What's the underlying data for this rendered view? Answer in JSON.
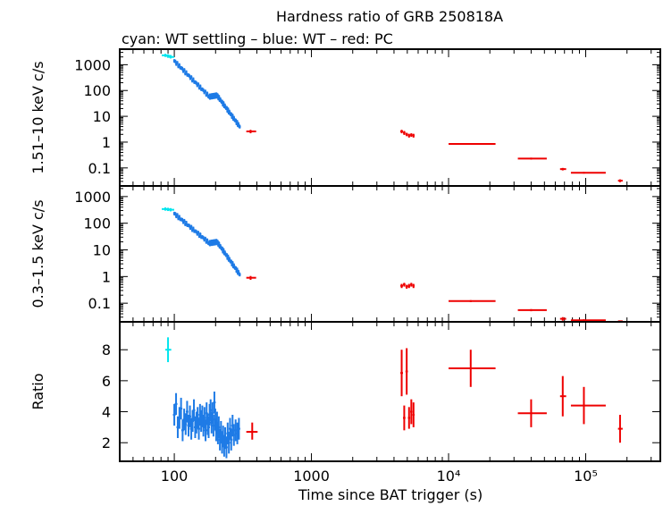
{
  "chart_data": {
    "type": "scatter",
    "title": "Hardness ratio of GRB 250818A",
    "subtitle": "cyan: WT settling – blue: WT – red: PC",
    "xlabel": "Time since BAT trigger (s)",
    "xscale": "log",
    "xlim": [
      40,
      350000
    ],
    "x_ticks": [
      {
        "value": 100,
        "label": "100"
      },
      {
        "value": 1000,
        "label": "1000"
      },
      {
        "value": 10000,
        "label": "10⁴"
      },
      {
        "value": 100000,
        "label": "10⁵"
      }
    ],
    "colors": {
      "settling": "#00e5ee",
      "wt": "#1e7be6",
      "pc": "#ee0000"
    },
    "panels": [
      {
        "id": "hard",
        "ylabel": "1.51–10 keV c/s",
        "yscale": "log",
        "ylim": [
          0.02,
          4000
        ],
        "y_ticks": [
          {
            "value": 1000,
            "label": "1000"
          },
          {
            "value": 100,
            "label": "100"
          },
          {
            "value": 10,
            "label": "10"
          },
          {
            "value": 1,
            "label": "1"
          },
          {
            "value": 0.1,
            "label": "0.1"
          }
        ],
        "settling": [
          [
            86,
            2300
          ],
          [
            90,
            2200
          ],
          [
            94,
            2000
          ]
        ],
        "wt_powerlaw": [
          {
            "t0": 100,
            "t1": 180,
            "v0": 1400,
            "v1": 58
          },
          {
            "t0": 180,
            "t1": 205,
            "v0": 58,
            "v1": 65
          },
          {
            "t0": 205,
            "t1": 300,
            "v0": 65,
            "v1": 4
          }
        ],
        "pc": [
          {
            "t": 360,
            "v": 2.6,
            "tlo": 335,
            "thi": 395,
            "vlo": 2.2,
            "vhi": 3.0
          },
          {
            "t": 4550,
            "v": 2.6,
            "tlo": 4450,
            "thi": 4650,
            "vlo": 2.2,
            "vhi": 3.0
          },
          {
            "t": 4750,
            "v": 2.3,
            "tlo": 4650,
            "thi": 4850,
            "vlo": 1.9,
            "vhi": 2.7
          },
          {
            "t": 4950,
            "v": 2.0,
            "tlo": 4850,
            "thi": 5050,
            "vlo": 1.7,
            "vhi": 2.3
          },
          {
            "t": 5150,
            "v": 1.8,
            "tlo": 5050,
            "thi": 5250,
            "vlo": 1.5,
            "vhi": 2.1
          },
          {
            "t": 5350,
            "v": 1.9,
            "tlo": 5250,
            "thi": 5450,
            "vlo": 1.6,
            "vhi": 2.2
          },
          {
            "t": 5550,
            "v": 1.8,
            "tlo": 5450,
            "thi": 5650,
            "vlo": 1.5,
            "vhi": 2.1
          },
          {
            "t": 14500,
            "v": 0.85,
            "tlo": 10000,
            "thi": 22000,
            "vlo": 0.8,
            "vhi": 0.9
          },
          {
            "t": 40000,
            "v": 0.23,
            "tlo": 32000,
            "thi": 52000,
            "vlo": 0.21,
            "vhi": 0.25
          },
          {
            "t": 68000,
            "v": 0.09,
            "tlo": 65000,
            "thi": 72000,
            "vlo": 0.08,
            "vhi": 0.1
          },
          {
            "t": 97000,
            "v": 0.065,
            "tlo": 78000,
            "thi": 140000,
            "vlo": 0.06,
            "vhi": 0.07
          },
          {
            "t": 178000,
            "v": 0.032,
            "tlo": 172000,
            "thi": 186000,
            "vlo": 0.028,
            "vhi": 0.036
          }
        ]
      },
      {
        "id": "soft",
        "ylabel": "0.3–1.5 keV c/s",
        "yscale": "log",
        "ylim": [
          0.02,
          2500
        ],
        "y_ticks": [
          {
            "value": 1000,
            "label": "1000"
          },
          {
            "value": 100,
            "label": "100"
          },
          {
            "value": 10,
            "label": "10"
          },
          {
            "value": 1,
            "label": "1"
          },
          {
            "value": 0.1,
            "label": "0.1"
          }
        ],
        "settling": [
          [
            86,
            340
          ],
          [
            90,
            330
          ],
          [
            94,
            320
          ]
        ],
        "wt_powerlaw": [
          {
            "t0": 100,
            "t1": 180,
            "v0": 230,
            "v1": 18
          },
          {
            "t0": 180,
            "t1": 205,
            "v0": 18,
            "v1": 20
          },
          {
            "t0": 205,
            "t1": 300,
            "v0": 20,
            "v1": 1.2
          }
        ],
        "pc": [
          {
            "t": 360,
            "v": 0.9,
            "tlo": 335,
            "thi": 395,
            "vlo": 0.75,
            "vhi": 1.05
          },
          {
            "t": 4550,
            "v": 0.45,
            "tlo": 4450,
            "thi": 4650,
            "vlo": 0.37,
            "vhi": 0.53
          },
          {
            "t": 4750,
            "v": 0.5,
            "tlo": 4650,
            "thi": 4850,
            "vlo": 0.42,
            "vhi": 0.58
          },
          {
            "t": 4950,
            "v": 0.42,
            "tlo": 4850,
            "thi": 5050,
            "vlo": 0.35,
            "vhi": 0.49
          },
          {
            "t": 5150,
            "v": 0.45,
            "tlo": 5050,
            "thi": 5250,
            "vlo": 0.37,
            "vhi": 0.53
          },
          {
            "t": 5350,
            "v": 0.5,
            "tlo": 5250,
            "thi": 5450,
            "vlo": 0.42,
            "vhi": 0.58
          },
          {
            "t": 5550,
            "v": 0.45,
            "tlo": 5450,
            "thi": 5650,
            "vlo": 0.37,
            "vhi": 0.53
          },
          {
            "t": 14500,
            "v": 0.12,
            "tlo": 10000,
            "thi": 22000,
            "vlo": 0.11,
            "vhi": 0.13
          },
          {
            "t": 40000,
            "v": 0.055,
            "tlo": 32000,
            "thi": 52000,
            "vlo": 0.05,
            "vhi": 0.06
          },
          {
            "t": 68000,
            "v": 0.026,
            "tlo": 65000,
            "thi": 72000,
            "vlo": 0.022,
            "vhi": 0.03
          },
          {
            "t": 97000,
            "v": 0.023,
            "tlo": 78000,
            "thi": 140000,
            "vlo": 0.021,
            "vhi": 0.025
          },
          {
            "t": 178000,
            "v": 0.021,
            "tlo": 172000,
            "thi": 186000,
            "vlo": 0.02,
            "vhi": 0.022
          }
        ]
      },
      {
        "id": "ratio",
        "ylabel": "Ratio",
        "yscale": "linear",
        "ylim": [
          0.8,
          9.8
        ],
        "y_ticks": [
          {
            "value": 8,
            "label": "8"
          },
          {
            "value": 6,
            "label": "6"
          },
          {
            "value": 4,
            "label": "4"
          },
          {
            "value": 2,
            "label": "2"
          }
        ],
        "settling": [
          {
            "t": 90,
            "v": 8.0,
            "tlo": 86,
            "thi": 95,
            "vlo": 7.2,
            "vhi": 8.8
          }
        ],
        "wt": [
          [
            100,
            3.8
          ],
          [
            103,
            4.5
          ],
          [
            106,
            3.0
          ],
          [
            109,
            3.6
          ],
          [
            112,
            4.2
          ],
          [
            115,
            2.8
          ],
          [
            118,
            3.5
          ],
          [
            121,
            3.2
          ],
          [
            124,
            4.0
          ],
          [
            127,
            3.1
          ],
          [
            130,
            3.7
          ],
          [
            133,
            2.9
          ],
          [
            136,
            3.4
          ],
          [
            139,
            4.1
          ],
          [
            142,
            3.0
          ],
          [
            145,
            3.3
          ],
          [
            148,
            3.6
          ],
          [
            151,
            2.9
          ],
          [
            154,
            3.8
          ],
          [
            157,
            3.4
          ],
          [
            160,
            3.7
          ],
          [
            163,
            3.1
          ],
          [
            166,
            3.6
          ],
          [
            169,
            2.8
          ],
          [
            172,
            3.9
          ],
          [
            175,
            3.2
          ],
          [
            178,
            3.0
          ],
          [
            181,
            3.8
          ],
          [
            184,
            4.1
          ],
          [
            187,
            3.3
          ],
          [
            190,
            3.9
          ],
          [
            193,
            3.1
          ],
          [
            196,
            4.6
          ],
          [
            199,
            3.5
          ],
          [
            202,
            2.8
          ],
          [
            205,
            3.3
          ],
          [
            208,
            2.6
          ],
          [
            211,
            3.0
          ],
          [
            215,
            2.2
          ],
          [
            219,
            2.7
          ],
          [
            223,
            2.0
          ],
          [
            227,
            2.4
          ],
          [
            231,
            1.8
          ],
          [
            235,
            2.3
          ],
          [
            240,
            1.7
          ],
          [
            245,
            2.6
          ],
          [
            250,
            2.0
          ],
          [
            255,
            2.9
          ],
          [
            260,
            2.2
          ],
          [
            266,
            3.1
          ],
          [
            272,
            2.5
          ],
          [
            280,
            2.8
          ],
          [
            288,
            2.6
          ],
          [
            296,
            2.9
          ]
        ],
        "wt_err": 0.7,
        "pc": [
          {
            "t": 370,
            "v": 2.7,
            "tlo": 335,
            "thi": 405,
            "vlo": 2.2,
            "vhi": 3.3
          },
          {
            "t": 4550,
            "v": 6.5,
            "tlo": 4450,
            "thi": 4650,
            "vlo": 5.0,
            "vhi": 8.0
          },
          {
            "t": 4750,
            "v": 3.6,
            "tlo": 4650,
            "thi": 4850,
            "vlo": 2.8,
            "vhi": 4.4
          },
          {
            "t": 4950,
            "v": 6.6,
            "tlo": 4850,
            "thi": 5050,
            "vlo": 5.1,
            "vhi": 8.1
          },
          {
            "t": 5150,
            "v": 3.6,
            "tlo": 5050,
            "thi": 5250,
            "vlo": 2.9,
            "vhi": 4.3
          },
          {
            "t": 5350,
            "v": 4.0,
            "tlo": 5250,
            "thi": 5450,
            "vlo": 3.2,
            "vhi": 4.8
          },
          {
            "t": 5550,
            "v": 3.8,
            "tlo": 5450,
            "thi": 5650,
            "vlo": 3.0,
            "vhi": 4.6
          },
          {
            "t": 14500,
            "v": 6.8,
            "tlo": 10000,
            "thi": 22000,
            "vlo": 5.6,
            "vhi": 8.0
          },
          {
            "t": 40000,
            "v": 3.9,
            "tlo": 32000,
            "thi": 52000,
            "vlo": 3.0,
            "vhi": 4.8
          },
          {
            "t": 68000,
            "v": 5.0,
            "tlo": 65000,
            "thi": 72000,
            "vlo": 3.7,
            "vhi": 6.3
          },
          {
            "t": 97000,
            "v": 4.4,
            "tlo": 78000,
            "thi": 140000,
            "vlo": 3.2,
            "vhi": 5.6
          },
          {
            "t": 178000,
            "v": 2.9,
            "tlo": 172000,
            "thi": 186000,
            "vlo": 2.0,
            "vhi": 3.8
          }
        ]
      }
    ]
  }
}
